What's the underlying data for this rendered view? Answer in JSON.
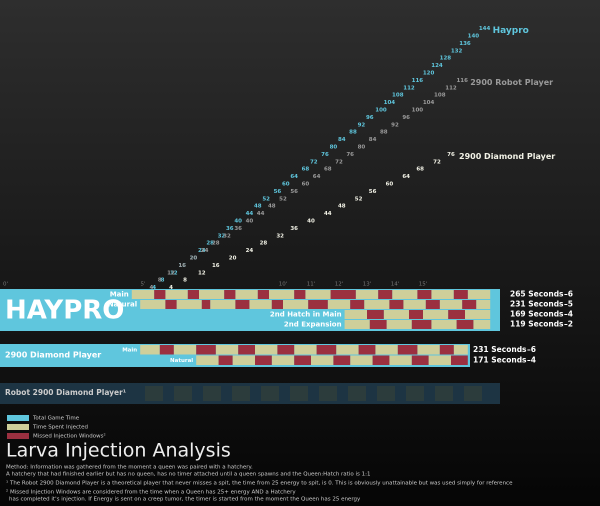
{
  "chart_data": {
    "type": "scatter",
    "xlim": [
      0,
      18
    ],
    "ylim": [
      0,
      150
    ],
    "xticks": [
      {
        "value": 0,
        "label": "0'"
      },
      {
        "value": 5,
        "label": "5'"
      },
      {
        "value": 10,
        "label": "10'"
      },
      {
        "value": 11,
        "label": "11'"
      },
      {
        "value": 12,
        "label": "12'"
      },
      {
        "value": 13,
        "label": "13'"
      },
      {
        "value": 14,
        "label": "14'"
      },
      {
        "value": 15,
        "label": "15'"
      }
    ],
    "series": [
      {
        "name": "Haypro",
        "color": "#5fc6dd",
        "x": [
          5.4,
          5.7,
          6.1,
          6.4,
          6.8,
          7.1,
          7.4,
          7.8,
          8.1,
          8.4,
          8.8,
          9.1,
          9.4,
          9.8,
          10.1,
          10.4,
          10.8,
          11.1,
          11.5,
          11.8,
          12.1,
          12.5,
          12.8,
          13.1,
          13.5,
          13.8,
          14.1,
          14.5,
          14.8,
          15.2,
          15.5,
          15.8,
          16.2,
          16.5,
          16.8,
          17.2
        ],
        "values": [
          4,
          8,
          12,
          16,
          20,
          24,
          28,
          32,
          36,
          40,
          44,
          48,
          52,
          56,
          60,
          64,
          68,
          72,
          76,
          80,
          84,
          88,
          92,
          96,
          100,
          104,
          108,
          112,
          116,
          120,
          124,
          128,
          132,
          136,
          140,
          144
        ]
      },
      {
        "name": "2900 Robot Player",
        "color": "#9a9a9a",
        "x": [
          5.3,
          5.6,
          6.0,
          6.4,
          6.8,
          7.2,
          7.6,
          8.0,
          8.4,
          8.8,
          9.2,
          9.6,
          10.0,
          10.4,
          10.8,
          11.2,
          11.6,
          12.0,
          12.4,
          12.8,
          13.2,
          13.6,
          14.0,
          14.4,
          14.8,
          15.2,
          15.6,
          16.0,
          16.4
        ],
        "values": [
          4,
          8,
          12,
          16,
          20,
          24,
          28,
          32,
          36,
          40,
          44,
          48,
          52,
          56,
          60,
          64,
          68,
          72,
          76,
          80,
          84,
          88,
          92,
          96,
          100,
          104,
          108,
          112,
          116
        ]
      },
      {
        "name": "2900 Diamond Player",
        "color": "#f2f2e6",
        "x": [
          6.0,
          6.5,
          7.1,
          7.6,
          8.2,
          8.8,
          9.3,
          9.9,
          10.4,
          11.0,
          11.6,
          12.1,
          12.7,
          13.2,
          13.8,
          14.4,
          14.9,
          15.5,
          16.0
        ],
        "values": [
          4,
          8,
          12,
          16,
          20,
          24,
          28,
          32,
          36,
          40,
          44,
          48,
          52,
          56,
          60,
          64,
          68,
          72,
          76
        ]
      }
    ]
  },
  "timeline": {
    "groups": [
      {
        "name": "HAYPRO",
        "rows": [
          {
            "label": "Main",
            "time": "265 Seconds",
            "delta": "–6",
            "injected": [
              [
                4.6,
                5.4
              ],
              [
                5.8,
                6.6
              ],
              [
                7.0,
                7.9
              ],
              [
                8.3,
                9.1
              ],
              [
                9.5,
                10.4
              ],
              [
                10.8,
                11.7
              ],
              [
                12.6,
                13.4
              ],
              [
                13.9,
                14.8
              ],
              [
                15.3,
                16.1
              ],
              [
                16.6,
                17.4
              ]
            ],
            "missed": [
              [
                5.4,
                5.8
              ],
              [
                6.6,
                7.0
              ],
              [
                7.9,
                8.3
              ],
              [
                9.1,
                9.5
              ],
              [
                10.4,
                10.8
              ],
              [
                11.7,
                12.6
              ],
              [
                13.4,
                13.9
              ],
              [
                14.8,
                15.3
              ],
              [
                16.1,
                16.6
              ]
            ]
          },
          {
            "label": "Natural",
            "time": "231 Seconds",
            "delta": "–5",
            "injected": [
              [
                4.9,
                5.8
              ],
              [
                6.2,
                7.1
              ],
              [
                7.4,
                8.3
              ],
              [
                8.8,
                9.6
              ],
              [
                10.0,
                10.9
              ],
              [
                11.6,
                12.4
              ],
              [
                12.9,
                13.8
              ],
              [
                14.3,
                15.1
              ],
              [
                15.6,
                16.4
              ],
              [
                16.9,
                17.4
              ]
            ],
            "missed": [
              [
                5.8,
                6.2
              ],
              [
                7.1,
                7.4
              ],
              [
                8.3,
                8.8
              ],
              [
                9.6,
                10.0
              ],
              [
                10.9,
                11.6
              ],
              [
                12.4,
                12.9
              ],
              [
                13.8,
                14.3
              ],
              [
                15.1,
                15.6
              ],
              [
                16.4,
                16.9
              ]
            ]
          },
          {
            "label": "2nd Hatch in Main",
            "time": "169 Seconds",
            "delta": "–4",
            "injected": [
              [
                12.2,
                13.0
              ],
              [
                13.6,
                14.5
              ],
              [
                15.0,
                15.9
              ],
              [
                16.5,
                17.4
              ]
            ],
            "missed": [
              [
                13.0,
                13.6
              ],
              [
                14.5,
                15.0
              ],
              [
                15.9,
                16.5
              ]
            ]
          },
          {
            "label": "2nd Expansion",
            "time": "119 Seconds",
            "delta": "–2",
            "injected": [
              [
                12.2,
                13.1
              ],
              [
                13.7,
                14.6
              ],
              [
                15.3,
                16.2
              ],
              [
                16.8,
                17.4
              ]
            ],
            "missed": [
              [
                13.1,
                13.7
              ],
              [
                14.6,
                15.3
              ],
              [
                16.2,
                16.8
              ]
            ]
          }
        ]
      },
      {
        "name": "2900 Diamond Player",
        "rows": [
          {
            "label": "Main",
            "time": "231 Seconds",
            "delta": "–6",
            "injected": [
              [
                4.9,
                5.6
              ],
              [
                6.1,
                6.9
              ],
              [
                7.6,
                8.4
              ],
              [
                9.0,
                9.8
              ],
              [
                10.4,
                11.2
              ],
              [
                11.9,
                12.7
              ],
              [
                13.3,
                14.1
              ],
              [
                14.8,
                15.6
              ],
              [
                16.1,
                16.6
              ]
            ],
            "missed": [
              [
                5.6,
                6.1
              ],
              [
                6.9,
                7.6
              ],
              [
                8.4,
                9.0
              ],
              [
                9.8,
                10.4
              ],
              [
                11.2,
                11.9
              ],
              [
                12.7,
                13.3
              ],
              [
                14.1,
                14.8
              ],
              [
                15.6,
                16.1
              ]
            ]
          },
          {
            "label": "Natural",
            "time": "171 Seconds",
            "delta": "–4",
            "injected": [
              [
                6.9,
                7.7
              ],
              [
                8.2,
                9.0
              ],
              [
                9.6,
                10.4
              ],
              [
                11.0,
                11.8
              ],
              [
                12.4,
                13.2
              ],
              [
                13.8,
                14.6
              ],
              [
                15.2,
                16.0
              ]
            ],
            "missed": [
              [
                7.7,
                8.2
              ],
              [
                9.0,
                9.6
              ],
              [
                10.4,
                11.0
              ],
              [
                11.8,
                12.4
              ],
              [
                13.2,
                13.8
              ],
              [
                14.6,
                15.2
              ],
              [
                16.0,
                16.6
              ]
            ]
          }
        ]
      }
    ],
    "robot": "Robot 2900 Diamond Player¹"
  },
  "legend": [
    {
      "label": "Total Game Time",
      "color": "#5fc6dd"
    },
    {
      "label": "Time Spent Injected",
      "color": "#cfcf9a"
    },
    {
      "label": "Missed Injection Windows²",
      "color": "#9b3040"
    }
  ],
  "title": "Larva Injection Analysis",
  "method": [
    "Method:  Information was gathered from the moment a queen was paired with a hatchery.",
    "A hatchery that had finished earlier but has no queen, has no timer attached until a queen spawns and the Queen:Hatch ratio is 1:1"
  ],
  "notes": [
    "¹ The Robot 2900 Diamond Player is a theoretical player that never misses a spit, the time from 25 energy to spit, is 0.  This is obviously unattainable but was used simply for reference",
    "² Missed Injection Windows are considered from the time when a Queen has 25+ energy AND a Hatchery",
    "has completed it's injection. If Energy is sent on a creep tumor, the timer is started from the moment the Queen has 25 energy"
  ]
}
